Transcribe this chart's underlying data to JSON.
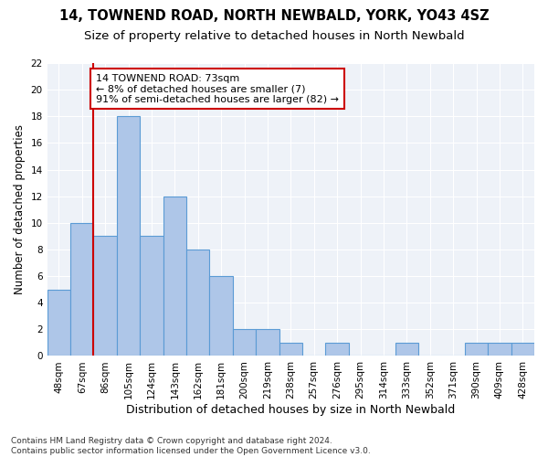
{
  "title": "14, TOWNEND ROAD, NORTH NEWBALD, YORK, YO43 4SZ",
  "subtitle": "Size of property relative to detached houses in North Newbald",
  "xlabel": "Distribution of detached houses by size in North Newbald",
  "ylabel": "Number of detached properties",
  "categories": [
    "48sqm",
    "67sqm",
    "86sqm",
    "105sqm",
    "124sqm",
    "143sqm",
    "162sqm",
    "181sqm",
    "200sqm",
    "219sqm",
    "238sqm",
    "257sqm",
    "276sqm",
    "295sqm",
    "314sqm",
    "333sqm",
    "352sqm",
    "371sqm",
    "390sqm",
    "409sqm",
    "428sqm"
  ],
  "values": [
    5,
    10,
    9,
    18,
    9,
    12,
    8,
    6,
    2,
    2,
    1,
    0,
    1,
    0,
    0,
    1,
    0,
    0,
    1,
    1,
    1
  ],
  "bar_color": "#aec6e8",
  "bar_edge_color": "#5b9bd5",
  "vline_x": 1.5,
  "vline_color": "#cc0000",
  "annotation_text": "14 TOWNEND ROAD: 73sqm\n← 8% of detached houses are smaller (7)\n91% of semi-detached houses are larger (82) →",
  "annotation_box_color": "#ffffff",
  "annotation_box_edge_color": "#cc0000",
  "ylim": [
    0,
    22
  ],
  "yticks": [
    0,
    2,
    4,
    6,
    8,
    10,
    12,
    14,
    16,
    18,
    20,
    22
  ],
  "footer": "Contains HM Land Registry data © Crown copyright and database right 2024.\nContains public sector information licensed under the Open Government Licence v3.0.",
  "bg_color": "#ffffff",
  "plot_bg_color": "#eef2f8",
  "grid_color": "#ffffff",
  "title_fontsize": 10.5,
  "subtitle_fontsize": 9.5,
  "xlabel_fontsize": 9,
  "ylabel_fontsize": 8.5,
  "tick_fontsize": 7.5,
  "annotation_fontsize": 8,
  "footer_fontsize": 6.5
}
